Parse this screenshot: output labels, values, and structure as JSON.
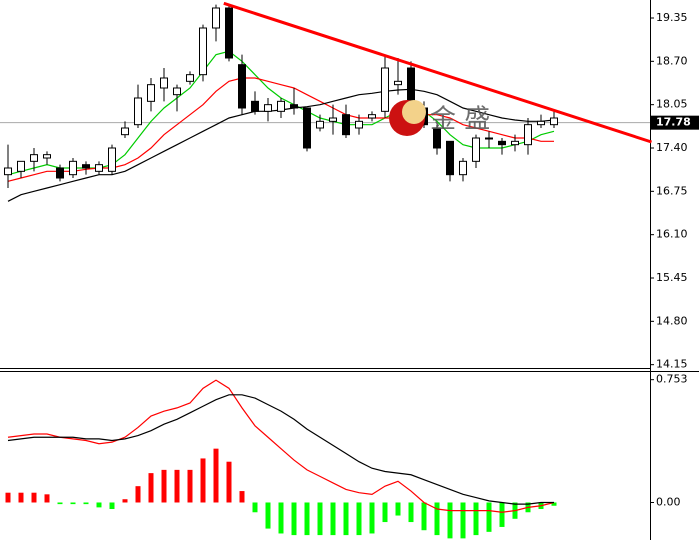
{
  "chart_data": [
    {
      "type": "candlestick",
      "open": [
        17.0,
        17.05,
        17.2,
        17.25,
        17.1,
        17.0,
        17.15,
        17.05,
        17.05,
        17.6,
        17.75,
        18.1,
        18.3,
        18.2,
        18.4,
        18.5,
        19.2,
        19.5,
        18.65,
        18.1,
        17.95,
        17.95,
        18.05,
        18.0,
        17.7,
        17.8,
        17.9,
        17.7,
        17.85,
        17.95,
        18.35,
        18.6,
        18.0,
        17.7,
        17.5,
        17.0,
        17.2,
        17.55,
        17.5,
        17.45,
        17.45,
        17.75,
        17.75
      ],
      "high": [
        17.45,
        17.2,
        17.4,
        17.35,
        17.15,
        17.25,
        17.2,
        17.2,
        17.45,
        17.8,
        18.35,
        18.45,
        18.6,
        18.35,
        18.55,
        19.25,
        19.55,
        19.55,
        18.8,
        18.25,
        18.15,
        18.15,
        18.3,
        18.0,
        17.9,
        18.05,
        18.05,
        17.9,
        17.95,
        18.8,
        18.75,
        18.7,
        18.1,
        17.75,
        17.5,
        17.25,
        17.6,
        17.65,
        17.55,
        17.6,
        17.85,
        17.9,
        17.95
      ],
      "low": [
        16.8,
        16.95,
        17.05,
        17.15,
        16.9,
        16.95,
        17.0,
        17.0,
        17.0,
        17.55,
        17.7,
        17.95,
        18.1,
        17.95,
        18.35,
        18.4,
        19.0,
        18.7,
        17.9,
        17.9,
        17.8,
        17.85,
        17.9,
        17.35,
        17.65,
        17.6,
        17.55,
        17.6,
        17.8,
        17.85,
        18.2,
        18.0,
        17.7,
        17.3,
        16.9,
        16.9,
        17.1,
        17.4,
        17.3,
        17.35,
        17.3,
        17.7,
        17.7
      ],
      "close": [
        17.1,
        17.2,
        17.3,
        17.3,
        16.95,
        17.2,
        17.1,
        17.15,
        17.4,
        17.7,
        18.15,
        18.35,
        18.45,
        18.3,
        18.5,
        19.2,
        19.5,
        18.75,
        18.0,
        17.95,
        18.05,
        18.1,
        18.0,
        17.4,
        17.8,
        17.85,
        17.6,
        17.8,
        17.9,
        18.6,
        18.4,
        18.1,
        17.75,
        17.4,
        17.0,
        17.2,
        17.55,
        17.55,
        17.45,
        17.5,
        17.75,
        17.8,
        17.85
      ],
      "up_color": "#ffffff",
      "down_color": "#000000",
      "series": [
        {
          "color": "#00cc00",
          "values": [
            17.0,
            17.05,
            17.1,
            17.15,
            17.1,
            17.1,
            17.1,
            17.1,
            17.15,
            17.3,
            17.55,
            17.8,
            18.0,
            18.15,
            18.3,
            18.55,
            18.8,
            18.85,
            18.7,
            18.5,
            18.3,
            18.15,
            18.05,
            17.95,
            17.85,
            17.8,
            17.75,
            17.75,
            17.75,
            17.85,
            17.95,
            18.0,
            17.95,
            17.8,
            17.6,
            17.45,
            17.4,
            17.4,
            17.4,
            17.45,
            17.5,
            17.6,
            17.65
          ]
        },
        {
          "color": "#ff0000",
          "values": [
            16.9,
            16.95,
            17.0,
            17.05,
            17.05,
            17.05,
            17.08,
            17.1,
            17.1,
            17.15,
            17.25,
            17.4,
            17.6,
            17.75,
            17.9,
            18.05,
            18.25,
            18.4,
            18.45,
            18.45,
            18.4,
            18.35,
            18.3,
            18.2,
            18.1,
            18.0,
            17.9,
            17.85,
            17.85,
            17.85,
            17.85,
            17.9,
            17.9,
            17.9,
            17.85,
            17.75,
            17.7,
            17.65,
            17.6,
            17.55,
            17.55,
            17.5,
            17.5
          ]
        },
        {
          "color": "#000000",
          "values": [
            16.6,
            16.7,
            16.75,
            16.8,
            16.85,
            16.9,
            16.95,
            17.0,
            17.0,
            17.05,
            17.15,
            17.25,
            17.35,
            17.45,
            17.55,
            17.65,
            17.75,
            17.85,
            17.9,
            17.95,
            17.95,
            17.97,
            18.0,
            18.02,
            18.05,
            18.1,
            18.15,
            18.2,
            18.22,
            18.25,
            18.27,
            18.28,
            18.25,
            18.2,
            18.1,
            18.0,
            17.95,
            17.9,
            17.85,
            17.82,
            17.8,
            17.8,
            17.82
          ]
        }
      ],
      "trendline": {
        "x": [
          16.6,
          49.5
        ],
        "values": [
          19.57,
          17.49
        ],
        "color": "#ff0000"
      },
      "last_price": 17.78,
      "watermark": "金 盛",
      "ylim": [
        14.1,
        19.62
      ],
      "yticks": [
        19.35,
        {
          "value": 18.7,
          "label": "18.70"
        },
        18.05,
        {
          "value": 17.4,
          "label": "17.40"
        },
        16.75,
        {
          "value": 16.1,
          "label": "16.10"
        },
        15.45,
        {
          "value": 14.8,
          "label": "14.80"
        },
        14.15
      ]
    },
    {
      "type": "macd",
      "histogram": [
        0.06,
        0.06,
        0.06,
        0.05,
        -0.01,
        -0.01,
        -0.01,
        -0.03,
        -0.04,
        0.02,
        0.1,
        0.18,
        0.2,
        0.2,
        0.2,
        0.27,
        0.33,
        0.25,
        0.07,
        -0.06,
        -0.16,
        -0.19,
        -0.2,
        -0.2,
        -0.2,
        -0.2,
        -0.2,
        -0.2,
        -0.19,
        -0.12,
        -0.08,
        -0.12,
        -0.17,
        -0.2,
        -0.22,
        -0.22,
        -0.2,
        -0.18,
        -0.15,
        -0.1,
        -0.06,
        -0.04,
        -0.02
      ],
      "positive_color": "#ff0000",
      "negative_color": "#00ff00",
      "series": [
        {
          "color": "#ff0000",
          "values": [
            0.4,
            0.41,
            0.42,
            0.42,
            0.4,
            0.39,
            0.38,
            0.36,
            0.37,
            0.4,
            0.46,
            0.53,
            0.56,
            0.58,
            0.61,
            0.7,
            0.75,
            0.7,
            0.58,
            0.47,
            0.4,
            0.33,
            0.26,
            0.2,
            0.16,
            0.12,
            0.08,
            0.06,
            0.05,
            0.1,
            0.13,
            0.07,
            0.0,
            -0.04,
            -0.05,
            -0.05,
            -0.05,
            -0.05,
            -0.06,
            -0.05,
            -0.03,
            -0.02,
            0.0
          ]
        },
        {
          "color": "#000000",
          "values": [
            0.38,
            0.39,
            0.4,
            0.4,
            0.4,
            0.4,
            0.39,
            0.39,
            0.38,
            0.39,
            0.41,
            0.44,
            0.48,
            0.51,
            0.55,
            0.59,
            0.63,
            0.66,
            0.66,
            0.64,
            0.6,
            0.56,
            0.51,
            0.45,
            0.4,
            0.35,
            0.3,
            0.25,
            0.21,
            0.19,
            0.18,
            0.17,
            0.14,
            0.11,
            0.08,
            0.05,
            0.03,
            0.01,
            0.0,
            -0.01,
            -0.01,
            0.0,
            0.0
          ]
        }
      ],
      "ylim": [
        -0.23,
        0.8
      ],
      "yticks": [
        0.753,
        {
          "value": 0,
          "label": "0.00"
        }
      ]
    }
  ]
}
